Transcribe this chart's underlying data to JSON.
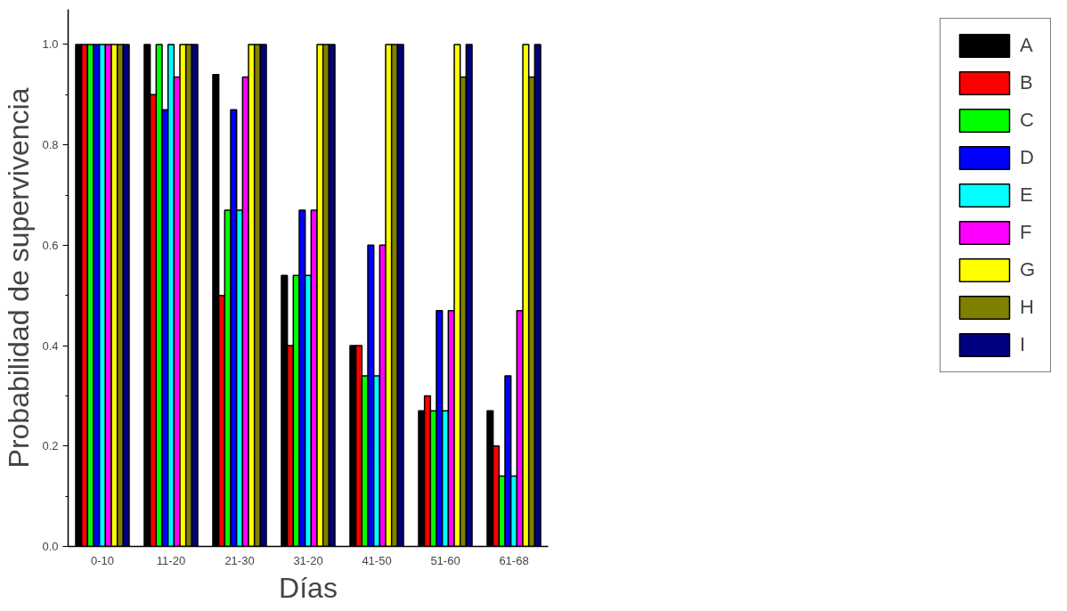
{
  "chart_data": {
    "type": "bar",
    "xlabel": "Días",
    "ylabel": "Probabilidad de supervivencia",
    "categories": [
      "0-10",
      "11-20",
      "21-30",
      "31-20",
      "41-50",
      "51-60",
      "61-68"
    ],
    "ylim": [
      0,
      1.07
    ],
    "yticks": [
      {
        "value": 0,
        "label": "0.0"
      },
      0.2,
      0.4,
      0.6,
      0.8,
      {
        "value": 1,
        "label": "1.0"
      }
    ],
    "grid": false,
    "legend": "right",
    "series": [
      {
        "name": "A",
        "color": "#000000",
        "values": [
          1.0,
          1.0,
          0.94,
          0.54,
          0.4,
          0.27,
          0.27
        ]
      },
      {
        "name": "B",
        "color": "#ff0000",
        "values": [
          1.0,
          0.9,
          0.5,
          0.4,
          0.4,
          0.3,
          0.2
        ]
      },
      {
        "name": "C",
        "color": "#00ff00",
        "values": [
          1.0,
          1.0,
          0.67,
          0.54,
          0.34,
          0.27,
          0.14
        ]
      },
      {
        "name": "D",
        "color": "#0000ff",
        "values": [
          1.0,
          0.87,
          0.87,
          0.67,
          0.6,
          0.47,
          0.34
        ]
      },
      {
        "name": "E",
        "color": "#00ffff",
        "values": [
          1.0,
          1.0,
          0.67,
          0.54,
          0.34,
          0.27,
          0.14
        ]
      },
      {
        "name": "F",
        "color": "#ff00ff",
        "values": [
          1.0,
          0.935,
          0.935,
          0.67,
          0.6,
          0.47,
          0.47
        ]
      },
      {
        "name": "G",
        "color": "#ffff00",
        "values": [
          1.0,
          1.0,
          1.0,
          1.0,
          1.0,
          1.0,
          1.0
        ]
      },
      {
        "name": "H",
        "color": "#808000",
        "values": [
          1.0,
          1.0,
          1.0,
          1.0,
          1.0,
          0.935,
          0.935
        ]
      },
      {
        "name": "I",
        "color": "#000080",
        "values": [
          1.0,
          1.0,
          1.0,
          1.0,
          1.0,
          1.0,
          1.0
        ]
      }
    ]
  }
}
